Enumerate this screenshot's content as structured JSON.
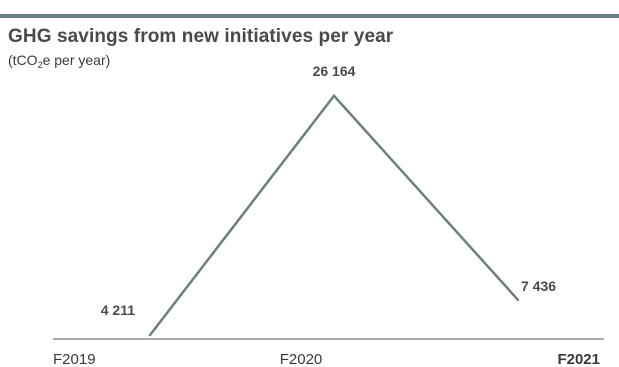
{
  "chart_data": {
    "type": "line",
    "title": "GHG savings from new initiatives per year",
    "subtitle_pre": "(tCO",
    "subtitle_sub": "2",
    "subtitle_post": "e per year)",
    "categories": [
      "F2019",
      "F2020",
      "F2021"
    ],
    "highlighted_category": "F2021",
    "series": [
      {
        "values": [
          4211,
          26164,
          7436
        ],
        "labels": [
          "4 211",
          "26 164",
          "7 436"
        ]
      }
    ],
    "ylim": [
      0,
      30000
    ],
    "grid": false,
    "colors": {
      "line": "#6b7e85",
      "rule": "#6b7e85",
      "axis": "#555555"
    }
  }
}
